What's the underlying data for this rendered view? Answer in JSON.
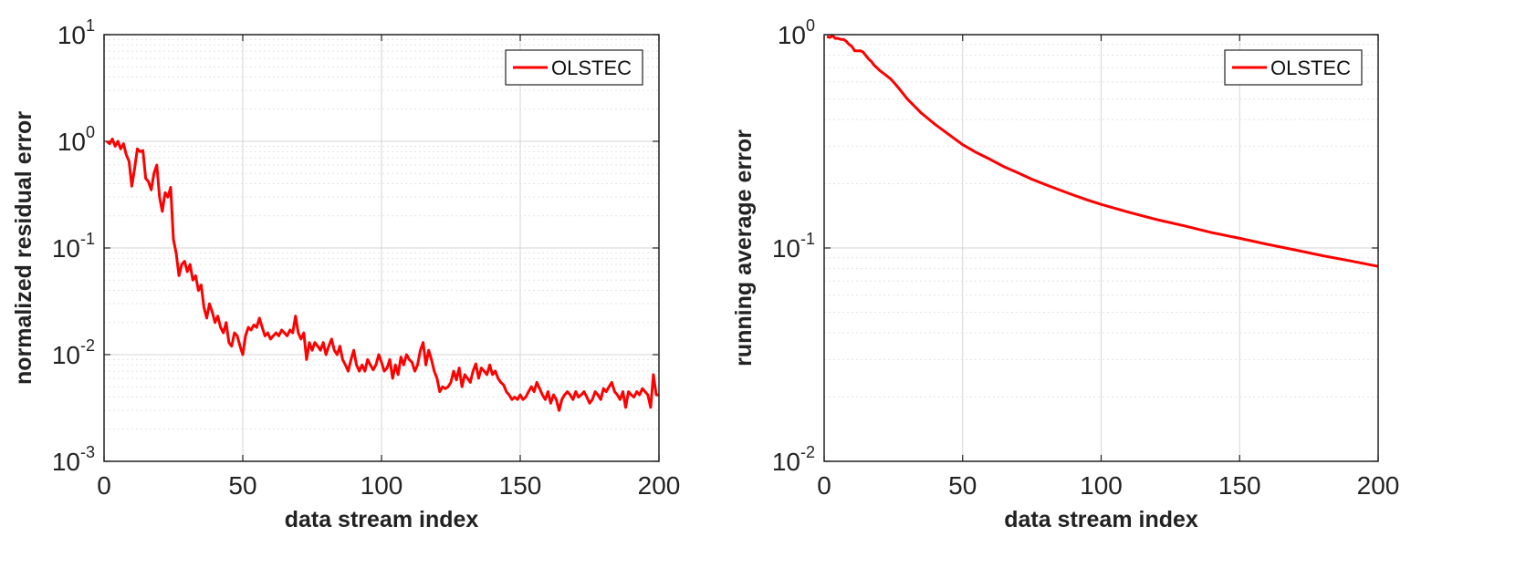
{
  "chart_data": [
    {
      "type": "line",
      "title": "",
      "xlabel": "data stream index",
      "ylabel": "normalized residual error",
      "xlim": [
        0,
        200
      ],
      "ylim": [
        0.001,
        10
      ],
      "yscale": "log",
      "xticks": [
        {
          "value": 0,
          "label": "0"
        },
        {
          "value": 50,
          "label": "50"
        },
        {
          "value": 100,
          "label": "100"
        },
        {
          "value": 150,
          "label": "150"
        },
        {
          "value": 200,
          "label": "200"
        }
      ],
      "yticks": [
        {
          "value": 0.001,
          "base": "10",
          "exp": "-3"
        },
        {
          "value": 0.01,
          "base": "10",
          "exp": "-2"
        },
        {
          "value": 0.1,
          "base": "10",
          "exp": "-1"
        },
        {
          "value": 1,
          "base": "10",
          "exp": "0"
        },
        {
          "value": 10,
          "base": "10",
          "exp": "1"
        }
      ],
      "grid": true,
      "legend_position": "top-right",
      "series": [
        {
          "name": "OLSTEC",
          "color": "#ff0000",
          "points": [
            [
              1,
              1.0
            ],
            [
              2,
              0.95
            ],
            [
              3,
              1.05
            ],
            [
              4,
              0.9
            ],
            [
              5,
              1.0
            ],
            [
              6,
              0.85
            ],
            [
              7,
              0.95
            ],
            [
              8,
              0.75
            ],
            [
              9,
              0.65
            ],
            [
              10,
              0.38
            ],
            [
              11,
              0.55
            ],
            [
              12,
              0.85
            ],
            [
              13,
              0.8
            ],
            [
              14,
              0.82
            ],
            [
              15,
              0.45
            ],
            [
              16,
              0.42
            ],
            [
              17,
              0.35
            ],
            [
              18,
              0.5
            ],
            [
              19,
              0.6
            ],
            [
              20,
              0.3
            ],
            [
              21,
              0.22
            ],
            [
              22,
              0.33
            ],
            [
              23,
              0.3
            ],
            [
              24,
              0.37
            ],
            [
              25,
              0.12
            ],
            [
              26,
              0.09
            ],
            [
              27,
              0.055
            ],
            [
              28,
              0.07
            ],
            [
              29,
              0.075
            ],
            [
              30,
              0.06
            ],
            [
              31,
              0.07
            ],
            [
              32,
              0.05
            ],
            [
              33,
              0.055
            ],
            [
              34,
              0.04
            ],
            [
              35,
              0.045
            ],
            [
              36,
              0.028
            ],
            [
              37,
              0.022
            ],
            [
              38,
              0.03
            ],
            [
              39,
              0.025
            ],
            [
              40,
              0.02
            ],
            [
              41,
              0.023
            ],
            [
              42,
              0.018
            ],
            [
              43,
              0.016
            ],
            [
              44,
              0.02
            ],
            [
              45,
              0.013
            ],
            [
              46,
              0.012
            ],
            [
              47,
              0.016
            ],
            [
              48,
              0.015
            ],
            [
              49,
              0.012
            ],
            [
              50,
              0.01
            ],
            [
              51,
              0.015
            ],
            [
              52,
              0.018
            ],
            [
              53,
              0.017
            ],
            [
              54,
              0.019
            ],
            [
              55,
              0.018
            ],
            [
              56,
              0.022
            ],
            [
              57,
              0.018
            ],
            [
              58,
              0.015
            ],
            [
              59,
              0.016
            ],
            [
              60,
              0.014
            ],
            [
              61,
              0.015
            ],
            [
              62,
              0.016
            ],
            [
              63,
              0.015
            ],
            [
              64,
              0.017
            ],
            [
              65,
              0.016
            ],
            [
              66,
              0.015
            ],
            [
              67,
              0.017
            ],
            [
              68,
              0.016
            ],
            [
              69,
              0.023
            ],
            [
              70,
              0.016
            ],
            [
              71,
              0.014
            ],
            [
              72,
              0.016
            ],
            [
              73,
              0.009
            ],
            [
              74,
              0.013
            ],
            [
              75,
              0.011
            ],
            [
              76,
              0.013
            ],
            [
              77,
              0.012
            ],
            [
              78,
              0.011
            ],
            [
              79,
              0.013
            ],
            [
              80,
              0.01
            ],
            [
              81,
              0.012
            ],
            [
              82,
              0.014
            ],
            [
              83,
              0.011
            ],
            [
              84,
              0.01
            ],
            [
              85,
              0.012
            ],
            [
              86,
              0.009
            ],
            [
              87,
              0.008
            ],
            [
              88,
              0.007
            ],
            [
              89,
              0.009
            ],
            [
              90,
              0.011
            ],
            [
              91,
              0.008
            ],
            [
              92,
              0.007
            ],
            [
              93,
              0.008
            ],
            [
              94,
              0.007
            ],
            [
              95,
              0.009
            ],
            [
              96,
              0.008
            ],
            [
              97,
              0.0072
            ],
            [
              98,
              0.008
            ],
            [
              99,
              0.01
            ],
            [
              100,
              0.0085
            ],
            [
              101,
              0.007
            ],
            [
              102,
              0.0075
            ],
            [
              103,
              0.009
            ],
            [
              104,
              0.006
            ],
            [
              105,
              0.008
            ],
            [
              106,
              0.0065
            ],
            [
              107,
              0.0095
            ],
            [
              108,
              0.008
            ],
            [
              109,
              0.01
            ],
            [
              110,
              0.009
            ],
            [
              111,
              0.0085
            ],
            [
              112,
              0.007
            ],
            [
              113,
              0.008
            ],
            [
              114,
              0.011
            ],
            [
              115,
              0.013
            ],
            [
              116,
              0.008
            ],
            [
              117,
              0.011
            ],
            [
              118,
              0.009
            ],
            [
              119,
              0.007
            ],
            [
              120,
              0.006
            ],
            [
              121,
              0.0045
            ],
            [
              122,
              0.005
            ],
            [
              123,
              0.0048
            ],
            [
              124,
              0.005
            ],
            [
              125,
              0.0055
            ],
            [
              126,
              0.007
            ],
            [
              127,
              0.0058
            ],
            [
              128,
              0.0075
            ],
            [
              129,
              0.005
            ],
            [
              130,
              0.0065
            ],
            [
              131,
              0.006
            ],
            [
              132,
              0.0055
            ],
            [
              133,
              0.007
            ],
            [
              134,
              0.0082
            ],
            [
              135,
              0.006
            ],
            [
              136,
              0.0075
            ],
            [
              137,
              0.007
            ],
            [
              138,
              0.0065
            ],
            [
              139,
              0.008
            ],
            [
              140,
              0.0065
            ],
            [
              141,
              0.007
            ],
            [
              142,
              0.006
            ],
            [
              143,
              0.0055
            ],
            [
              144,
              0.0052
            ],
            [
              145,
              0.0045
            ],
            [
              146,
              0.0042
            ],
            [
              147,
              0.0038
            ],
            [
              148,
              0.004
            ],
            [
              149,
              0.0038
            ],
            [
              150,
              0.0042
            ],
            [
              151,
              0.0038
            ],
            [
              152,
              0.004
            ],
            [
              153,
              0.0045
            ],
            [
              154,
              0.005
            ],
            [
              155,
              0.0045
            ],
            [
              156,
              0.0055
            ],
            [
              157,
              0.0048
            ],
            [
              158,
              0.0042
            ],
            [
              159,
              0.0038
            ],
            [
              160,
              0.0045
            ],
            [
              161,
              0.0035
            ],
            [
              162,
              0.0042
            ],
            [
              163,
              0.0038
            ],
            [
              164,
              0.003
            ],
            [
              165,
              0.0038
            ],
            [
              166,
              0.0042
            ],
            [
              167,
              0.0045
            ],
            [
              168,
              0.0042
            ],
            [
              169,
              0.0038
            ],
            [
              170,
              0.0045
            ],
            [
              171,
              0.004
            ],
            [
              172,
              0.0042
            ],
            [
              173,
              0.0045
            ],
            [
              174,
              0.004
            ],
            [
              175,
              0.0035
            ],
            [
              176,
              0.0038
            ],
            [
              177,
              0.0045
            ],
            [
              178,
              0.0042
            ],
            [
              179,
              0.0038
            ],
            [
              180,
              0.0048
            ],
            [
              181,
              0.0045
            ],
            [
              182,
              0.005
            ],
            [
              183,
              0.0055
            ],
            [
              184,
              0.0045
            ],
            [
              185,
              0.0042
            ],
            [
              186,
              0.0038
            ],
            [
              187,
              0.0045
            ],
            [
              188,
              0.0032
            ],
            [
              189,
              0.0045
            ],
            [
              190,
              0.0042
            ],
            [
              191,
              0.004
            ],
            [
              192,
              0.0045
            ],
            [
              193,
              0.0042
            ],
            [
              194,
              0.0048
            ],
            [
              195,
              0.0045
            ],
            [
              196,
              0.0042
            ],
            [
              197,
              0.0032
            ],
            [
              198,
              0.0065
            ],
            [
              199,
              0.0042
            ],
            [
              200,
              0.0042
            ]
          ]
        }
      ]
    },
    {
      "type": "line",
      "title": "",
      "xlabel": "data stream index",
      "ylabel": "running average error",
      "xlim": [
        0,
        200
      ],
      "ylim": [
        0.01,
        1
      ],
      "yscale": "log",
      "xticks": [
        {
          "value": 0,
          "label": "0"
        },
        {
          "value": 50,
          "label": "50"
        },
        {
          "value": 100,
          "label": "100"
        },
        {
          "value": 150,
          "label": "150"
        },
        {
          "value": 200,
          "label": "200"
        }
      ],
      "yticks": [
        {
          "value": 0.01,
          "base": "10",
          "exp": "-2"
        },
        {
          "value": 0.1,
          "base": "10",
          "exp": "-1"
        },
        {
          "value": 1,
          "base": "10",
          "exp": "0"
        }
      ],
      "grid": true,
      "legend_position": "top-right",
      "series": [
        {
          "name": "OLSTEC",
          "color": "#ff0000",
          "points": [
            [
              1,
              0.98
            ],
            [
              2,
              0.97
            ],
            [
              3,
              0.99
            ],
            [
              4,
              0.96
            ],
            [
              5,
              0.96
            ],
            [
              6,
              0.95
            ],
            [
              7,
              0.95
            ],
            [
              8,
              0.93
            ],
            [
              9,
              0.9
            ],
            [
              10,
              0.88
            ],
            [
              11,
              0.84
            ],
            [
              12,
              0.84
            ],
            [
              13,
              0.84
            ],
            [
              14,
              0.83
            ],
            [
              15,
              0.8
            ],
            [
              16,
              0.77
            ],
            [
              17,
              0.75
            ],
            [
              18,
              0.72
            ],
            [
              19,
              0.7
            ],
            [
              20,
              0.68
            ],
            [
              22,
              0.65
            ],
            [
              24,
              0.62
            ],
            [
              25,
              0.6
            ],
            [
              27,
              0.56
            ],
            [
              30,
              0.5
            ],
            [
              35,
              0.43
            ],
            [
              40,
              0.38
            ],
            [
              45,
              0.34
            ],
            [
              50,
              0.305
            ],
            [
              55,
              0.28
            ],
            [
              60,
              0.26
            ],
            [
              65,
              0.24
            ],
            [
              70,
              0.225
            ],
            [
              75,
              0.21
            ],
            [
              80,
              0.198
            ],
            [
              85,
              0.187
            ],
            [
              90,
              0.177
            ],
            [
              95,
              0.168
            ],
            [
              100,
              0.16
            ],
            [
              110,
              0.147
            ],
            [
              120,
              0.136
            ],
            [
              130,
              0.127
            ],
            [
              140,
              0.118
            ],
            [
              150,
              0.111
            ],
            [
              160,
              0.104
            ],
            [
              170,
              0.098
            ],
            [
              180,
              0.092
            ],
            [
              190,
              0.087
            ],
            [
              200,
              0.082
            ]
          ]
        }
      ]
    }
  ],
  "colors": {
    "series": "#ff0000",
    "grid": "#dcdcdc",
    "axes": "#222222"
  }
}
